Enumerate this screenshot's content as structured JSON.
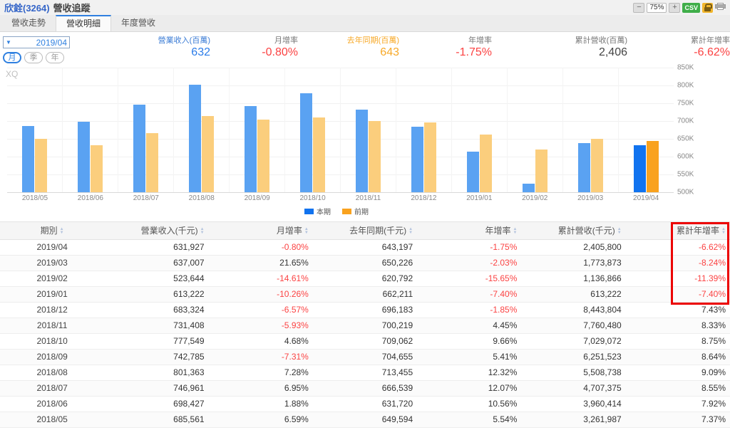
{
  "header": {
    "stock": "欣銓(3264)",
    "title": "營收追蹤",
    "toolbar": {
      "zoom_out": "−",
      "zoom_level": "75%",
      "zoom_in": "+",
      "csv": "CSV"
    }
  },
  "tabs": [
    {
      "label": "營收走勢",
      "active": false
    },
    {
      "label": "營收明細",
      "active": true
    },
    {
      "label": "年度營收",
      "active": false
    }
  ],
  "controls": {
    "period_dropdown": "2019/04",
    "period_buttons": [
      {
        "label": "月",
        "active": true
      },
      {
        "label": "季",
        "active": false
      },
      {
        "label": "年",
        "active": false
      }
    ]
  },
  "stats": [
    {
      "label": "營業收入(百萬)",
      "value": "632",
      "label_color": "#3a7bd5",
      "value_color": "#2b7ce9"
    },
    {
      "label": "月增率",
      "value": "-0.80%",
      "label_color": "#777777",
      "value_color": "#fb4242"
    },
    {
      "label": "去年同期(百萬)",
      "value": "643",
      "label_color": "#f7a928",
      "value_color": "#f7a928"
    },
    {
      "label": "年增率",
      "value": "-1.75%",
      "label_color": "#777777",
      "value_color": "#fb4242"
    },
    {
      "label": "累計營收(百萬)",
      "value": "2,406",
      "label_color": "#777777",
      "value_color": "#444444"
    },
    {
      "label": "累計年增率",
      "value": "-6.62%",
      "label_color": "#777777",
      "value_color": "#fb4242"
    }
  ],
  "chart_data": {
    "type": "bar",
    "watermark": "XQ",
    "categories": [
      "2018/05",
      "2018/06",
      "2018/07",
      "2018/08",
      "2018/09",
      "2018/10",
      "2018/11",
      "2018/12",
      "2019/01",
      "2019/02",
      "2019/03",
      "2019/04"
    ],
    "series": [
      {
        "name": "本期",
        "color": "#5aa2f2",
        "highlight_color": "#1173ef",
        "values": [
          685561,
          698427,
          746961,
          801363,
          742785,
          777549,
          731408,
          683324,
          613222,
          523644,
          637007,
          631927
        ]
      },
      {
        "name": "前期",
        "color": "#fbce7d",
        "highlight_color": "#f9a21e",
        "values": [
          649594,
          631720,
          666539,
          713455,
          704655,
          709062,
          700219,
          696183,
          662211,
          620792,
          650226,
          643197
        ]
      }
    ],
    "highlight_index": 11,
    "ylim": [
      500000,
      850000
    ],
    "ytick_step": 50000,
    "ytick_labels": [
      "850K",
      "800K",
      "750K",
      "700K",
      "650K",
      "600K",
      "550K",
      "500K"
    ],
    "grid": true,
    "legend_position": "bottom",
    "unit": "千元"
  },
  "table": {
    "columns": [
      "期別",
      "營業收入(千元)",
      "月增率",
      "去年同期(千元)",
      "年增率",
      "累計營收(千元)",
      "累計年增率"
    ],
    "rows": [
      [
        "2019/04",
        "631,927",
        "-0.80%",
        "643,197",
        "-1.75%",
        "2,405,800",
        "-6.62%"
      ],
      [
        "2019/03",
        "637,007",
        "21.65%",
        "650,226",
        "-2.03%",
        "1,773,873",
        "-8.24%"
      ],
      [
        "2019/02",
        "523,644",
        "-14.61%",
        "620,792",
        "-15.65%",
        "1,136,866",
        "-11.39%"
      ],
      [
        "2019/01",
        "613,222",
        "-10.26%",
        "662,211",
        "-7.40%",
        "613,222",
        "-7.40%"
      ],
      [
        "2018/12",
        "683,324",
        "-6.57%",
        "696,183",
        "-1.85%",
        "8,443,804",
        "7.43%"
      ],
      [
        "2018/11",
        "731,408",
        "-5.93%",
        "700,219",
        "4.45%",
        "7,760,480",
        "8.33%"
      ],
      [
        "2018/10",
        "777,549",
        "4.68%",
        "709,062",
        "9.66%",
        "7,029,072",
        "8.75%"
      ],
      [
        "2018/09",
        "742,785",
        "-7.31%",
        "704,655",
        "5.41%",
        "6,251,523",
        "8.64%"
      ],
      [
        "2018/08",
        "801,363",
        "7.28%",
        "713,455",
        "12.32%",
        "5,508,738",
        "9.09%"
      ],
      [
        "2018/07",
        "746,961",
        "6.95%",
        "666,539",
        "12.07%",
        "4,707,375",
        "8.55%"
      ],
      [
        "2018/06",
        "698,427",
        "1.88%",
        "631,720",
        "10.56%",
        "3,960,414",
        "7.92%"
      ],
      [
        "2018/05",
        "685,561",
        "6.59%",
        "649,594",
        "5.54%",
        "3,261,987",
        "7.37%"
      ]
    ],
    "annotation": {
      "color": "#ec0000",
      "column": "累計年增率",
      "rows_covered": 4
    }
  }
}
